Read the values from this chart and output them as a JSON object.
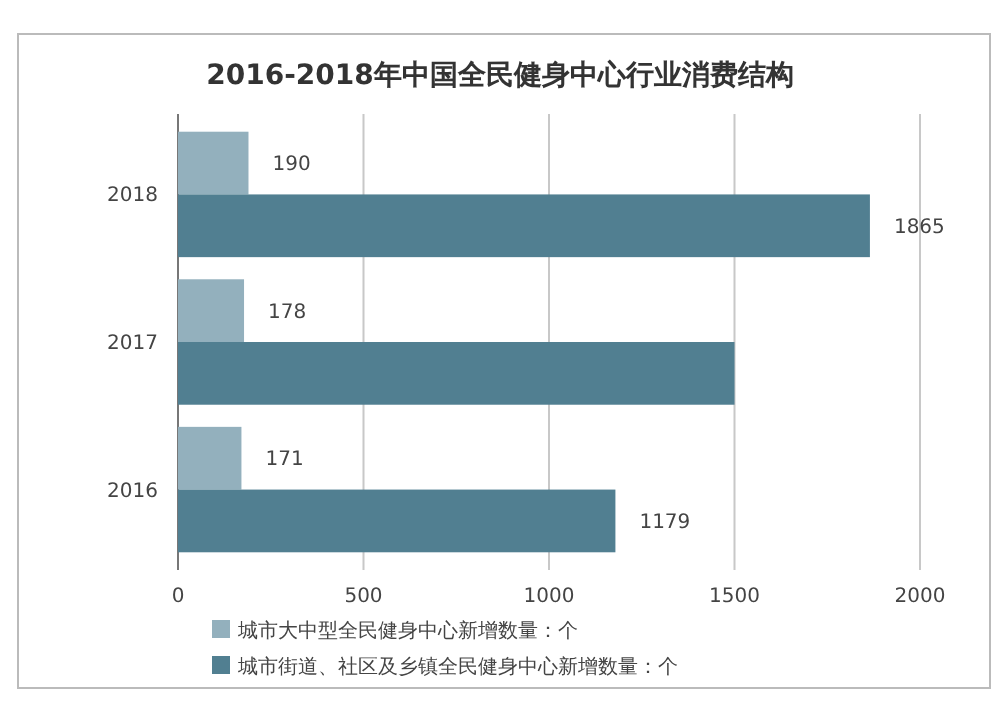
{
  "chart_data": {
    "type": "bar",
    "orientation": "horizontal",
    "title": "2016-2018年中国全民健身中心行业消费结构",
    "categories": [
      "2018",
      "2017",
      "2016"
    ],
    "series": [
      {
        "name": "城市大中型全民健身中心新增数量：个",
        "color": "#93b0bd",
        "values": [
          190,
          178,
          171
        ],
        "value_labels": [
          "190",
          "178",
          "171"
        ]
      },
      {
        "name": "城市街道、社区及乡镇全民健身中心新增数量：个",
        "color": "#517f91",
        "values": [
          1865,
          1500,
          1179
        ],
        "value_labels": [
          "1865",
          null,
          "1179"
        ]
      }
    ],
    "xlim": [
      0,
      2000
    ],
    "xticks": [
      0,
      500,
      1000,
      1500,
      2000
    ],
    "grid": "x",
    "legend": "bottom"
  }
}
